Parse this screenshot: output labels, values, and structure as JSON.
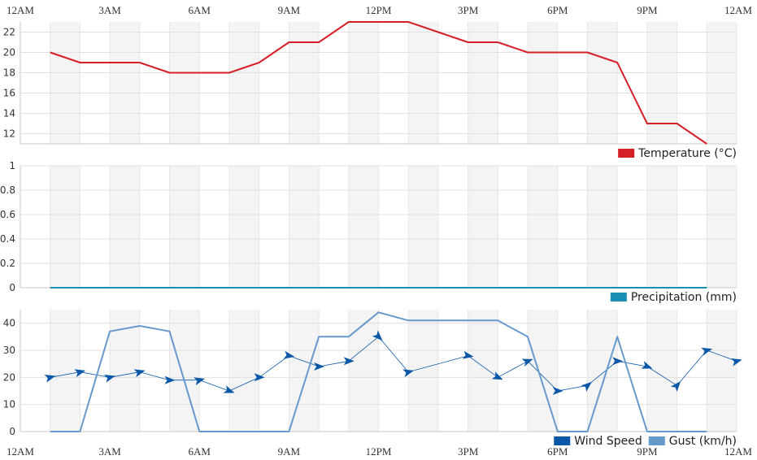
{
  "chart_data": {
    "type": "line",
    "x_axis_labels": [
      "12AM",
      "3AM",
      "6AM",
      "9AM",
      "12PM",
      "3PM",
      "6PM",
      "9PM",
      "12AM"
    ],
    "hours": [
      1,
      2,
      3,
      4,
      5,
      6,
      7,
      8,
      9,
      10,
      11,
      12,
      13,
      14,
      15,
      16,
      17,
      18,
      19,
      20,
      21,
      22,
      23
    ],
    "panels": [
      {
        "id": "temperature",
        "ylim": [
          11,
          23
        ],
        "yticks": [
          12,
          14,
          16,
          18,
          20,
          22
        ],
        "series": [
          {
            "name": "Temperature (°C)",
            "color": "#d62027",
            "values": [
              20,
              19,
              19,
              19,
              18,
              18,
              18,
              19,
              21,
              21,
              23,
              23,
              23,
              22,
              21,
              21,
              20,
              20,
              20,
              19,
              13,
              13,
              11
            ]
          }
        ]
      },
      {
        "id": "precipitation",
        "ylim": [
          0,
          1
        ],
        "yticks": [
          0,
          0.2,
          0.4,
          0.6,
          0.8,
          1
        ],
        "series": [
          {
            "name": "Precipitation (mm)",
            "color": "#1a8fb5",
            "values": [
              0,
              0,
              0,
              0,
              0,
              0,
              0,
              0,
              0,
              0,
              0,
              0,
              0,
              0,
              0,
              0,
              0,
              0,
              0,
              0,
              0,
              0,
              0
            ]
          }
        ]
      },
      {
        "id": "wind",
        "ylim": [
          0,
          45
        ],
        "yticks": [
          0,
          10,
          20,
          30,
          40
        ],
        "series": [
          {
            "name": "Wind Speed",
            "color": "#0b57a8",
            "hours": [
              1,
              2,
              3,
              4,
              5,
              6,
              7,
              8,
              9,
              10,
              11,
              12,
              13,
              15,
              16,
              17,
              18,
              19,
              20,
              21,
              22,
              23,
              24
            ],
            "values": [
              20,
              22,
              20,
              22,
              19,
              19,
              15,
              20,
              28,
              24,
              26,
              35,
              22,
              28,
              20,
              26,
              15,
              17,
              26,
              24,
              17,
              30,
              26
            ],
            "directions_deg": [
              -15,
              -15,
              -15,
              -15,
              0,
              -15,
              20,
              0,
              10,
              0,
              0,
              45,
              -15,
              10,
              25,
              -20,
              0,
              -40,
              0,
              20,
              -50,
              -15,
              -15
            ]
          },
          {
            "name": "Gust (km/h)",
            "color": "#6699cc",
            "values": [
              0,
              0,
              37,
              39,
              37,
              0,
              0,
              0,
              0,
              35,
              35,
              44,
              41,
              41,
              41,
              41,
              35,
              0,
              0,
              35,
              0,
              0,
              0
            ]
          }
        ]
      }
    ]
  }
}
